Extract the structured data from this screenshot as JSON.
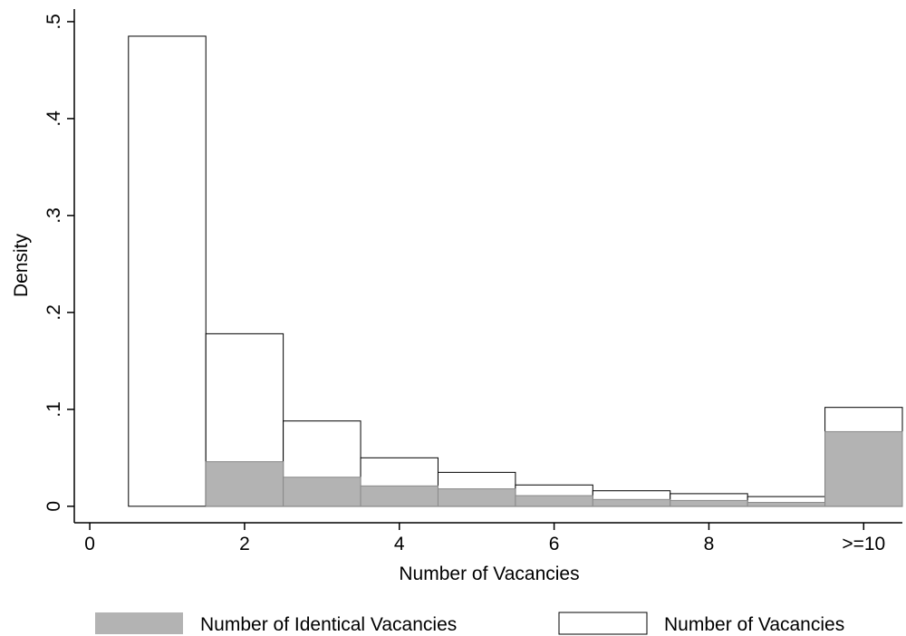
{
  "chart_data": {
    "type": "histogram",
    "bins": [
      0.5,
      1.5,
      2.5,
      3.5,
      4.5,
      5.5,
      6.5,
      7.5,
      8.5,
      9.5,
      10.5
    ],
    "series": [
      {
        "name": "Number of Vacancies",
        "color": "#ffffff",
        "values": [
          0.485,
          0.178,
          0.088,
          0.05,
          0.035,
          0.022,
          0.016,
          0.013,
          0.01,
          0.102
        ]
      },
      {
        "name": "Number of Identical Vacancies",
        "color": "#b3b3b3",
        "values": [
          0,
          0.046,
          0.03,
          0.021,
          0.018,
          0.011,
          0.007,
          0.006,
          0.004,
          0.077
        ]
      }
    ],
    "x_label": "Number of Vacancies",
    "y_label": "Density",
    "xlim": [
      -0.2,
      10.5
    ],
    "ylim": [
      -0.017,
      0.513
    ],
    "xticks": [
      0,
      2,
      4,
      6,
      8,
      {
        "value": 10,
        "label": ">=10"
      }
    ],
    "yticks": [
      0,
      {
        "value": 0.1,
        "label": ".1"
      },
      {
        "value": 0.2,
        "label": ".2"
      },
      {
        "value": 0.3,
        "label": ".3"
      },
      {
        "value": 0.4,
        "label": ".4"
      },
      {
        "value": 0.5,
        "label": ".5"
      }
    ],
    "legend": "bottom"
  }
}
